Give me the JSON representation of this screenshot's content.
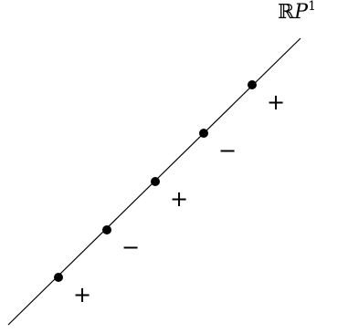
{
  "space": {
    "field_symbol": "ℝ",
    "letter": "P",
    "exponent": "1"
  },
  "points": [
    {
      "sign": "+"
    },
    {
      "sign": "−"
    },
    {
      "sign": "+"
    },
    {
      "sign": "−"
    },
    {
      "sign": "+"
    }
  ],
  "colors": {
    "line": "#000000",
    "points": "#000000",
    "background": "#ffffff"
  }
}
